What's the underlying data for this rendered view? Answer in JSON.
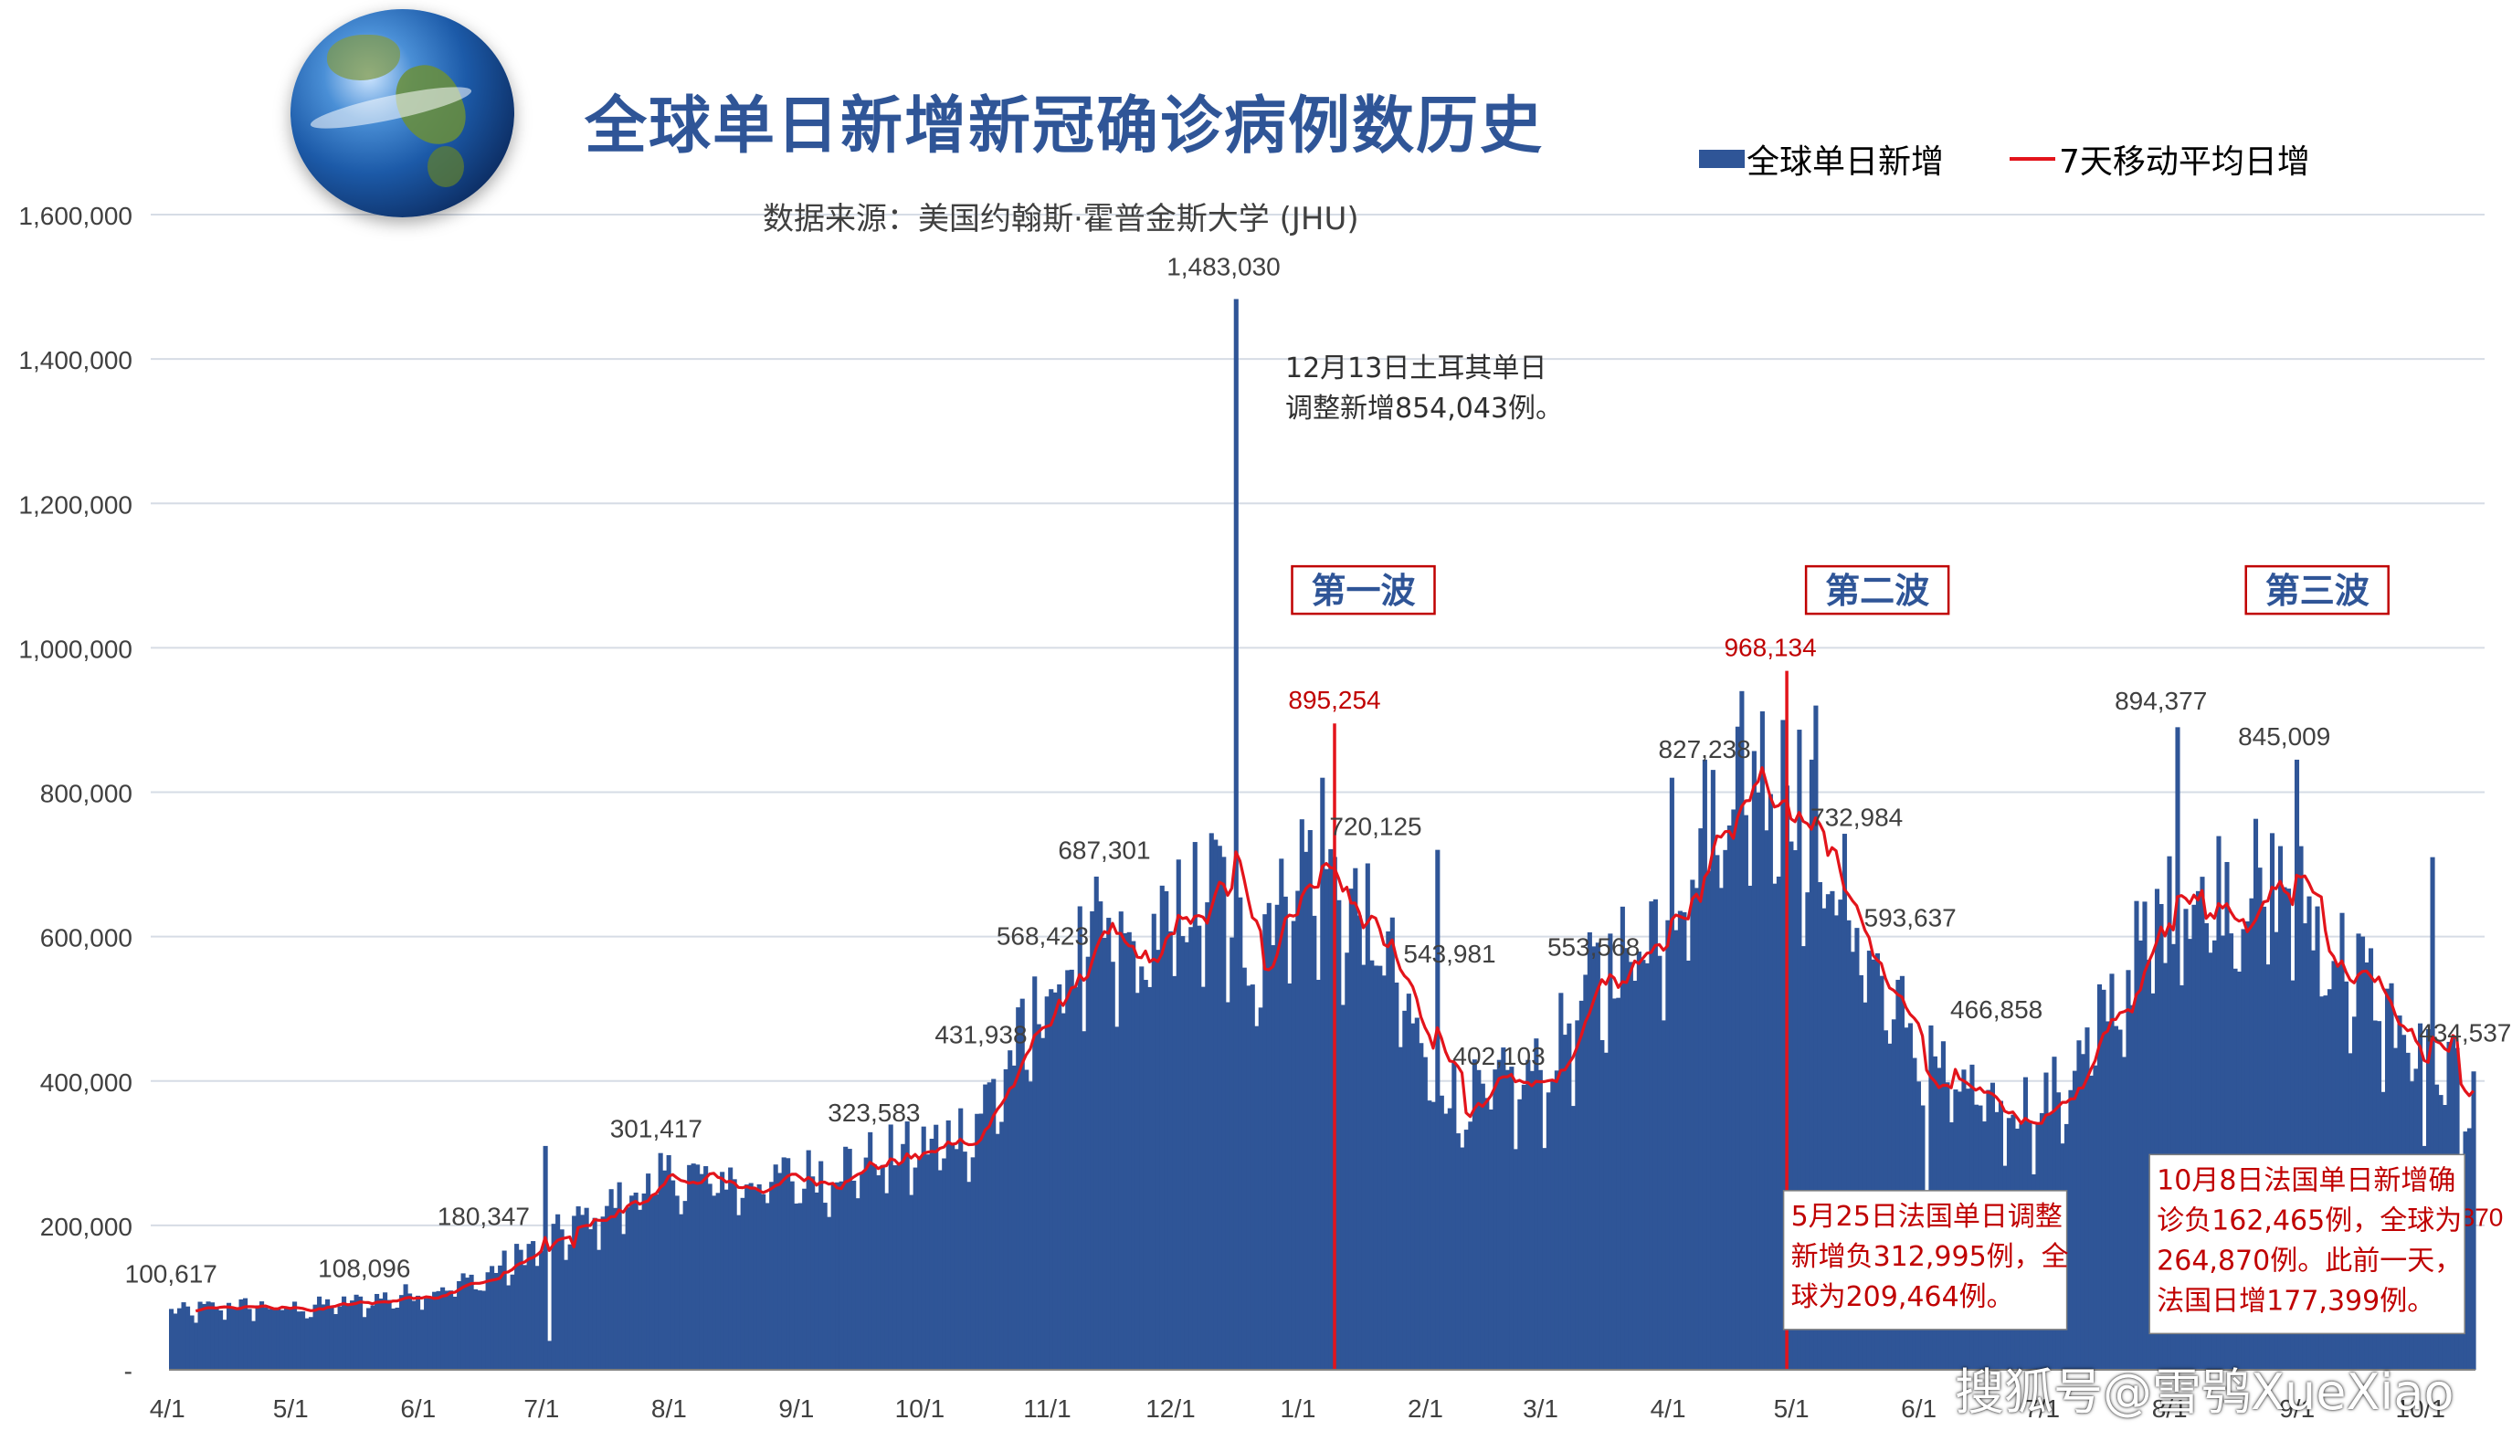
{
  "title": "全球单日新增新冠确诊病例数历史",
  "subtitle": "数据来源：美国约翰斯·霍普金斯大学 (JHU)",
  "legend": {
    "bar": "全球单日新增",
    "line": "7天移动平均日增"
  },
  "watermark": "搜狐号@雪鸮XueXiao",
  "colors": {
    "bar": "#2f5597",
    "line": "#e3141b",
    "grid": "#d6dce5",
    "annot_red": "#c00000",
    "annot_text": "#404040",
    "box_border": "#c00000"
  },
  "chart_data": {
    "type": "bar",
    "title": "全球单日新增新冠确诊病例数历史",
    "xlabel": "",
    "ylabel": "",
    "ylim": [
      0,
      1600000
    ],
    "grid": true,
    "legend_position": "top-right",
    "yticks": [
      0,
      200000,
      400000,
      600000,
      800000,
      1000000,
      1200000,
      1400000,
      1600000
    ],
    "ytick_labels": [
      "-",
      "200,000",
      "400,000",
      "600,000",
      "800,000",
      "1,000,000",
      "1,200,000",
      "1,400,000",
      "1,600,000"
    ],
    "xtick_labels": [
      "4/1",
      "5/1",
      "6/1",
      "7/1",
      "8/1",
      "9/1",
      "10/1",
      "11/1",
      "12/1",
      "1/1",
      "2/1",
      "3/1",
      "4/1",
      "5/1",
      "6/1",
      "7/1",
      "8/1",
      "9/1",
      "10/1"
    ],
    "xtick_days": [
      0,
      30,
      61,
      91,
      122,
      153,
      183,
      214,
      244,
      275,
      306,
      334,
      365,
      395,
      426,
      456,
      487,
      518,
      548
    ],
    "days": 561,
    "series": [
      {
        "name": "全球单日新增",
        "kind": "bar",
        "anchors": [
          [
            0,
            78000
          ],
          [
            15,
            88000
          ],
          [
            30,
            84000
          ],
          [
            45,
            92000
          ],
          [
            61,
            106000
          ],
          [
            75,
            123000
          ],
          [
            91,
            175000
          ],
          [
            105,
            218000
          ],
          [
            122,
            265000
          ],
          [
            140,
            256000
          ],
          [
            153,
            264000
          ],
          [
            170,
            286000
          ],
          [
            183,
            300000
          ],
          [
            195,
            335000
          ],
          [
            205,
            425000
          ],
          [
            214,
            520000
          ],
          [
            225,
            585000
          ],
          [
            235,
            560000
          ],
          [
            244,
            615000
          ],
          [
            255,
            665000
          ],
          [
            262,
            560000
          ],
          [
            270,
            660000
          ],
          [
            278,
            700000
          ],
          [
            288,
            625000
          ],
          [
            296,
            560000
          ],
          [
            306,
            400000
          ],
          [
            315,
            365000
          ],
          [
            325,
            385000
          ],
          [
            334,
            405000
          ],
          [
            345,
            520000
          ],
          [
            355,
            580000
          ],
          [
            365,
            640000
          ],
          [
            375,
            760000
          ],
          [
            383,
            835000
          ],
          [
            390,
            810000
          ],
          [
            396,
            775000
          ],
          [
            402,
            690000
          ],
          [
            410,
            610000
          ],
          [
            416,
            520000
          ],
          [
            426,
            440000
          ],
          [
            436,
            370000
          ],
          [
            446,
            360000
          ],
          [
            456,
            360000
          ],
          [
            466,
            430000
          ],
          [
            474,
            520000
          ],
          [
            482,
            600000
          ],
          [
            492,
            640000
          ],
          [
            500,
            660000
          ],
          [
            508,
            655000
          ],
          [
            516,
            650000
          ],
          [
            524,
            580000
          ],
          [
            532,
            540000
          ],
          [
            540,
            480000
          ],
          [
            548,
            415000
          ],
          [
            555,
            395000
          ],
          [
            560,
            430000
          ]
        ],
        "noise_amplitude": 0.13,
        "spikes": [
          [
            91,
            310000
          ],
          [
            92,
            40000
          ],
          [
            259,
            1483030
          ],
          [
            280,
            820000
          ],
          [
            308,
            720125
          ],
          [
            365,
            820000
          ],
          [
            382,
            940000
          ],
          [
            392,
            900000
          ],
          [
            400,
            920000
          ],
          [
            427,
            209464
          ],
          [
            488,
            890000
          ],
          [
            517,
            845009
          ],
          [
            548,
            310000
          ],
          [
            550,
            710000
          ],
          [
            557,
            264870
          ]
        ]
      },
      {
        "name": "7天移动平均日增",
        "kind": "line",
        "window": 7
      }
    ],
    "value_labels": [
      {
        "day": 0,
        "value": 100617,
        "text": "100,617"
      },
      {
        "day": 47,
        "value": 108096,
        "text": "108,096"
      },
      {
        "day": 76,
        "value": 180347,
        "text": "180,347"
      },
      {
        "day": 118,
        "value": 301417,
        "text": "301,417"
      },
      {
        "day": 171,
        "value": 323583,
        "text": "323,583"
      },
      {
        "day": 197,
        "value": 431938,
        "text": "431,938"
      },
      {
        "day": 212,
        "value": 568423,
        "text": "568,423"
      },
      {
        "day": 227,
        "value": 687301,
        "text": "687,301"
      },
      {
        "day": 256,
        "value": 1483030,
        "text": "1,483,030"
      },
      {
        "day": 283,
        "value": 895254,
        "text": "895,254",
        "color": "red"
      },
      {
        "day": 293,
        "value": 720125,
        "text": "720,125"
      },
      {
        "day": 311,
        "value": 543981,
        "text": "543,981"
      },
      {
        "day": 323,
        "value": 402103,
        "text": "402,103"
      },
      {
        "day": 346,
        "value": 553568,
        "text": "553,568"
      },
      {
        "day": 373,
        "value": 827238,
        "text": "827,238"
      },
      {
        "day": 389,
        "value": 968134,
        "text": "968,134",
        "color": "red"
      },
      {
        "day": 410,
        "value": 732984,
        "text": "732,984"
      },
      {
        "day": 423,
        "value": 593637,
        "text": "593,637"
      },
      {
        "day": 444,
        "value": 466858,
        "text": "466,858"
      },
      {
        "day": 484,
        "value": 894377,
        "text": "894,377"
      },
      {
        "day": 514,
        "value": 845009,
        "text": "845,009"
      },
      {
        "day": 558,
        "value": 434537,
        "text": "434,537"
      },
      {
        "day": 556,
        "value": 264870,
        "text": "264,870",
        "color": "red"
      },
      {
        "day": 428,
        "value": 209464,
        "text": "209,464",
        "color": "red",
        "boxed": true
      }
    ],
    "marker_lines": [
      {
        "day": 283,
        "value": 895254
      },
      {
        "day": 393,
        "value": 968134
      }
    ],
    "wave_labels": [
      {
        "day": 290,
        "text": "第一波"
      },
      {
        "day": 415,
        "text": "第二波"
      },
      {
        "day": 522,
        "text": "第三波"
      }
    ],
    "annotations": [
      {
        "day": 271,
        "value": 1375000,
        "lines": [
          "12月13日土耳其单日",
          "调整新增854,043例。"
        ],
        "color": "dark",
        "boxed": false
      },
      {
        "day": 394,
        "value": 200000,
        "lines": [
          "5月25日法国单日调整",
          "新增负312,995例，全",
          "球为209,464例。"
        ],
        "color": "red",
        "boxed": true
      },
      {
        "day": 483,
        "value": 250000,
        "lines": [
          "10月8日法国单日新增确",
          "诊负162,465例，全球为",
          "264,870例。此前一天，",
          "法国日增177,399例。"
        ],
        "color": "red",
        "boxed": true
      }
    ]
  }
}
